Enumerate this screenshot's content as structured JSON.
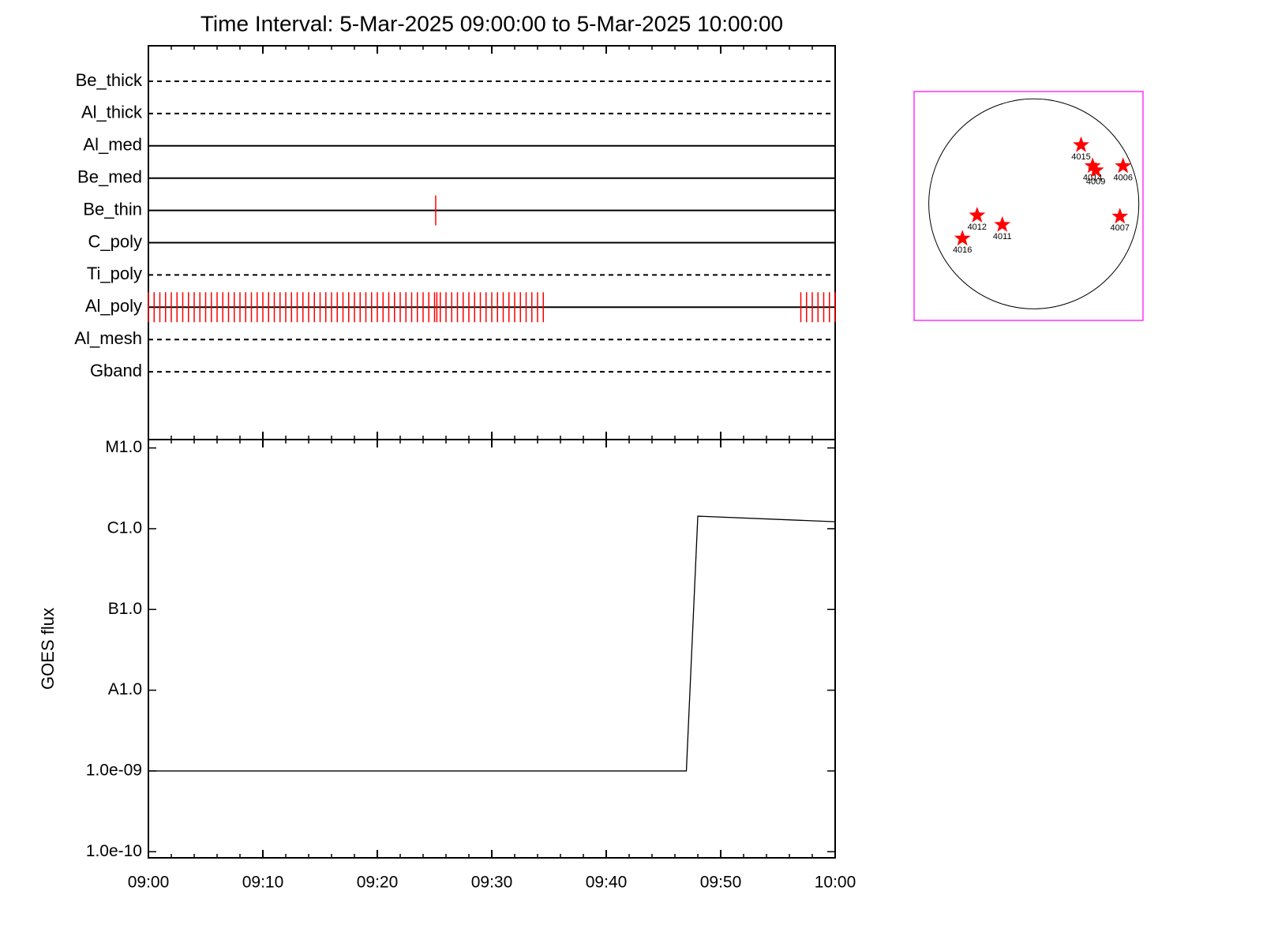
{
  "chart_data": [
    {
      "type": "timeline",
      "title": "Time Interval:  5-Mar-2025 09:00:00 to  5-Mar-2025 10:00:00",
      "categories": [
        "Be_thick",
        "Al_thick",
        "Al_med",
        "Be_med",
        "Be_thin",
        "C_poly",
        "Ti_poly",
        "Al_poly",
        "Al_mesh",
        "Gband"
      ],
      "line_styles": [
        "dashed",
        "dashed",
        "solid",
        "solid",
        "solid",
        "solid",
        "dashed",
        "solid",
        "dashed",
        "dashed"
      ],
      "event_color": "#ff0000",
      "events": [
        [],
        [],
        [],
        [],
        [
          25.1
        ],
        [],
        [],
        [
          0,
          0.5,
          1,
          1.5,
          2,
          2.5,
          3,
          3.5,
          4,
          4.5,
          5,
          5.5,
          6,
          6.5,
          7,
          7.5,
          8,
          8.5,
          9,
          9.5,
          10,
          10.5,
          11,
          11.5,
          12,
          12.5,
          13,
          13.5,
          14,
          14.5,
          15,
          15.5,
          16,
          16.5,
          17,
          17.5,
          18,
          18.5,
          19,
          19.5,
          20,
          20.5,
          21,
          21.5,
          22,
          22.5,
          23,
          23.5,
          24,
          24.5,
          25,
          25.2,
          25.5,
          26,
          26.5,
          27,
          27.5,
          28,
          28.5,
          29,
          29.5,
          30,
          30.5,
          31,
          31.5,
          32,
          32.5,
          33,
          33.5,
          34,
          34.5,
          57,
          57.5,
          58,
          58.5,
          59,
          59.5,
          60
        ],
        [],
        []
      ]
    },
    {
      "type": "line",
      "ylabel": "GOES flux",
      "log_scale": true,
      "color": "#000000",
      "xlim": [
        0,
        60
      ],
      "xticks": [
        {
          "value": 0,
          "label": "09:00"
        },
        {
          "value": 10,
          "label": "09:10"
        },
        {
          "value": 20,
          "label": "09:20"
        },
        {
          "value": 30,
          "label": "09:30"
        },
        {
          "value": 40,
          "label": "09:40"
        },
        {
          "value": 50,
          "label": "09:50"
        },
        {
          "value": 60,
          "label": "10:00"
        }
      ],
      "xminorticks": [
        2,
        4,
        6,
        8,
        12,
        14,
        16,
        18,
        22,
        24,
        26,
        28,
        32,
        34,
        36,
        38,
        42,
        44,
        46,
        48,
        52,
        54,
        56,
        58
      ],
      "ylim": [
        8.4e-11,
        1.27e-05
      ],
      "yticks": [
        {
          "value": 1e-10,
          "label": "1.0e-10"
        },
        {
          "value": 1e-09,
          "label": "1.0e-09"
        },
        {
          "value": 1e-08,
          "label": "A1.0"
        },
        {
          "value": 1e-07,
          "label": "B1.0"
        },
        {
          "value": 1e-06,
          "label": "C1.0"
        },
        {
          "value": 1e-05,
          "label": "M1.0"
        }
      ],
      "x": [
        0,
        47,
        48,
        60
      ],
      "values": [
        1e-09,
        1e-09,
        1.43e-06,
        1.22e-06
      ]
    },
    {
      "type": "disk",
      "color": "#ff0000",
      "frame_color": "#ff00ff",
      "xlim": [
        -1.14,
        1.04
      ],
      "ylim": [
        -1.11,
        1.07
      ],
      "labels": [
        "4015",
        "4014",
        "4009",
        "4006",
        "4007",
        "4012",
        "4011",
        "4016"
      ],
      "x": [
        0.45,
        0.56,
        0.59,
        0.85,
        0.82,
        -0.54,
        -0.3,
        -0.68
      ],
      "y": [
        0.56,
        0.36,
        0.32,
        0.36,
        -0.12,
        -0.11,
        -0.2,
        -0.33
      ]
    }
  ]
}
